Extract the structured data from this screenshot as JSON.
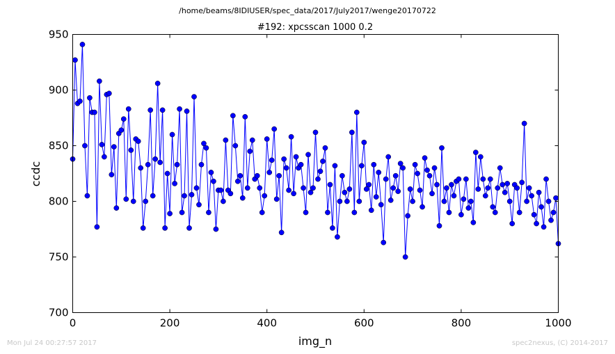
{
  "suptitle": "/home/beams/8IDIUSER/spec_data/2017/July2017/wenge20170722",
  "footer": {
    "timestamp": "Mon Jul 24 00:27:57 2017",
    "credit": "spec2nexus, (C) 2014-2017"
  },
  "colors": {
    "series": "#0000ff",
    "axes": "#000000",
    "footer": "#c8c8c8"
  },
  "chart_data": {
    "type": "line",
    "title": "#192: xpcsscan 1000 0.2",
    "xlabel": "img_n",
    "ylabel": "ccdc",
    "xlim": [
      0,
      1000
    ],
    "ylim": [
      700,
      950
    ],
    "xticks": [
      0,
      200,
      400,
      600,
      800,
      1000
    ],
    "yticks": [
      700,
      750,
      800,
      850,
      900,
      950
    ],
    "grid": false,
    "marker": "circle",
    "series": [
      {
        "step": 5,
        "x_start": 0,
        "values": [
          838,
          927,
          888,
          890,
          941,
          850,
          805,
          893,
          880,
          880,
          777,
          908,
          851,
          840,
          896,
          897,
          824,
          849,
          794,
          861,
          864,
          874,
          802,
          883,
          846,
          800,
          856,
          854,
          830,
          776,
          800,
          833,
          882,
          805,
          838,
          906,
          835,
          882,
          776,
          825,
          789,
          860,
          816,
          833,
          883,
          790,
          805,
          881,
          776,
          806,
          894,
          812,
          797,
          833,
          852,
          848,
          790,
          826,
          818,
          775,
          810,
          810,
          800,
          855,
          810,
          807,
          877,
          850,
          818,
          823,
          803,
          876,
          812,
          845,
          855,
          820,
          823,
          812,
          790,
          805,
          856,
          826,
          837,
          865,
          802,
          823,
          772,
          838,
          830,
          810,
          858,
          807,
          840,
          830,
          833,
          812,
          790,
          842,
          808,
          812,
          862,
          820,
          827,
          836,
          848,
          790,
          815,
          776,
          832,
          768,
          800,
          823,
          808,
          800,
          811,
          862,
          790,
          880,
          800,
          832,
          853,
          811,
          815,
          792,
          833,
          804,
          826,
          797,
          763,
          820,
          840,
          801,
          812,
          823,
          809,
          834,
          830,
          750,
          787,
          811,
          800,
          833,
          825,
          810,
          795,
          839,
          828,
          823,
          807,
          830,
          815,
          778,
          848,
          800,
          812,
          790,
          815,
          805,
          818,
          820,
          788,
          802,
          820,
          794,
          800,
          781,
          844,
          811,
          840,
          820,
          805,
          812,
          820,
          795,
          790,
          812,
          830,
          815,
          808,
          816,
          800,
          780,
          815,
          812,
          790,
          817,
          870,
          800,
          812,
          805,
          788,
          780,
          808,
          795,
          777,
          820,
          800,
          783,
          790,
          803,
          762
        ]
      }
    ]
  }
}
